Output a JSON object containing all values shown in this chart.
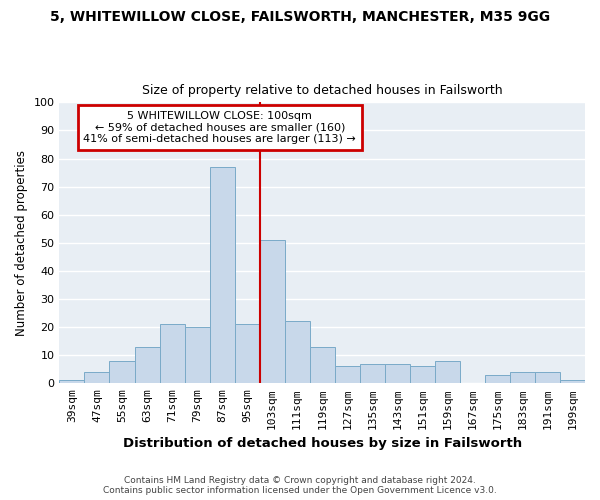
{
  "title": "5, WHITEWILLOW CLOSE, FAILSWORTH, MANCHESTER, M35 9GG",
  "subtitle": "Size of property relative to detached houses in Failsworth",
  "xlabel": "Distribution of detached houses by size in Failsworth",
  "ylabel": "Number of detached properties",
  "bar_color": "#c8d8ea",
  "bar_edge_color": "#7aaac8",
  "axes_background": "#e8eef4",
  "fig_background": "#ffffff",
  "grid_color": "#ffffff",
  "categories": [
    "39sqm",
    "47sqm",
    "55sqm",
    "63sqm",
    "71sqm",
    "79sqm",
    "87sqm",
    "95sqm",
    "103sqm",
    "111sqm",
    "119sqm",
    "127sqm",
    "135sqm",
    "143sqm",
    "151sqm",
    "159sqm",
    "167sqm",
    "175sqm",
    "183sqm",
    "191sqm",
    "199sqm"
  ],
  "values": [
    1,
    4,
    8,
    13,
    21,
    20,
    77,
    21,
    51,
    22,
    13,
    6,
    7,
    7,
    6,
    8,
    0,
    3,
    4,
    4,
    1
  ],
  "ylim": [
    0,
    100
  ],
  "yticks": [
    0,
    10,
    20,
    30,
    40,
    50,
    60,
    70,
    80,
    90,
    100
  ],
  "annotation_line1": "5 WHITEWILLOW CLOSE: 100sqm",
  "annotation_line2": "← 59% of detached houses are smaller (160)",
  "annotation_line3": "41% of semi-detached houses are larger (113) →",
  "annotation_box_color": "#ffffff",
  "annotation_box_edge_color": "#cc0000",
  "reference_line_color": "#cc0000",
  "footer_line1": "Contains HM Land Registry data © Crown copyright and database right 2024.",
  "footer_line2": "Contains public sector information licensed under the Open Government Licence v3.0."
}
